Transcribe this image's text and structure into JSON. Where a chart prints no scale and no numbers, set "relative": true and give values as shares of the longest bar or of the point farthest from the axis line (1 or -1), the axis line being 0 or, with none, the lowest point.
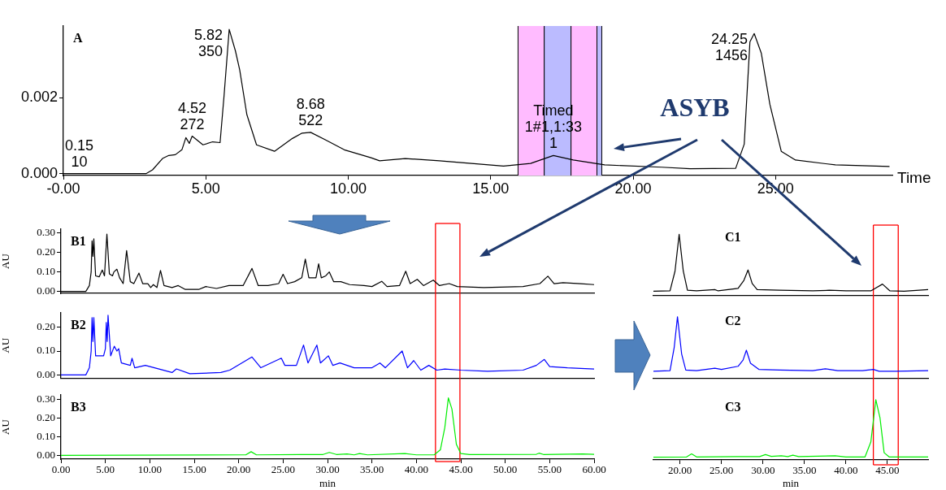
{
  "chart_data": [
    {
      "type": "line",
      "xlabel": "Time",
      "annotations": [
        "A",
        "ASYB",
        {
          "text": "0.15\n10",
          "x": 0.15,
          "y": 0
        },
        {
          "text": "4.52\n272",
          "x": 4.52,
          "y": 0.00099
        },
        {
          "text": "5.82\n350",
          "x": 5.82,
          "y": 0.00381
        },
        {
          "text": "8.68\n522",
          "x": 8.68,
          "y": 0.00109
        },
        {
          "text": "Timed\n1#1,1:33\n1",
          "x": 17.2,
          "y": 0.00048
        },
        {
          "text": "24.25\n1456",
          "x": 24.25,
          "y": 0.0037
        }
      ],
      "x": [
        0,
        0.06,
        0.15,
        1.5,
        2.9,
        3.13,
        3.48,
        3.7,
        3.93,
        4.16,
        4.3,
        4.42,
        4.52,
        4.9,
        5.24,
        5.5,
        5.64,
        5.82,
        6.04,
        6.19,
        6.44,
        6.78,
        7.41,
        8.04,
        8.38,
        8.68,
        9.18,
        9.86,
        10.8,
        11.1,
        12.0,
        13.2,
        15.45,
        16.4,
        17.2,
        17.9,
        19.0,
        21.0,
        22.0,
        23.6,
        23.9,
        24.1,
        24.25,
        24.5,
        24.8,
        25.2,
        25.7,
        27.1,
        29.0
      ],
      "series": [
        {
          "color": "#000000",
          "values": [
            0,
            0,
            0,
            0,
            0,
            0.0001,
            0.0004,
            0.00048,
            0.0005,
            0.00063,
            0.00095,
            0.0008,
            0.00099,
            0.00076,
            0.00084,
            0.00082,
            0.00206,
            0.00381,
            0.00324,
            0.00274,
            0.00156,
            0.00076,
            0.00059,
            0.00093,
            0.00107,
            0.00109,
            0.0009,
            0.00063,
            0.00042,
            0.00034,
            0.0004,
            0.00034,
            0.0002,
            0.00027,
            0.00048,
            0.00036,
            0.00023,
            0.00017,
            0.00013,
            0.00014,
            0.00078,
            0.00348,
            0.0037,
            0.00318,
            0.00183,
            0.00059,
            0.00036,
            0.00023,
            0.00019
          ]
        }
      ],
      "bands": [
        {
          "axis": "x",
          "from": 15.96,
          "to": 16.88,
          "color": "#ffbbff"
        },
        {
          "axis": "x",
          "from": 16.88,
          "to": 17.82,
          "color": "#bbbbff"
        },
        {
          "axis": "x",
          "from": 17.82,
          "to": 18.73,
          "color": "#ffbbff"
        },
        {
          "axis": "x",
          "from": 18.73,
          "to": 18.9,
          "color": "#bbbbff"
        }
      ],
      "xlim": [
        0,
        29.1
      ],
      "ylim": [
        -5e-05,
        0.0039
      ],
      "xticks": [
        {
          "value": 0,
          "label": "-0.00"
        },
        {
          "value": 5,
          "label": "5.00"
        },
        {
          "value": 10,
          "label": "10.00"
        },
        {
          "value": 15,
          "label": "15.00"
        },
        {
          "value": 20,
          "label": "20.00"
        },
        {
          "value": 25,
          "label": "25.00"
        }
      ],
      "yticks": [
        {
          "value": 0,
          "label": "0.000"
        },
        {
          "value": 0.002,
          "label": "0.002"
        }
      ]
    },
    {
      "type": "line",
      "ylabel": "AU",
      "annotations": [
        "B1"
      ],
      "tick_labels": "y",
      "x": [
        0,
        2.8,
        3.2,
        3.4,
        3.5,
        3.6,
        3.7,
        3.9,
        4.3,
        4.65,
        4.9,
        5.17,
        5.45,
        5.8,
        5.96,
        6.3,
        6.6,
        7.0,
        7.39,
        7.8,
        8.2,
        8.78,
        9.2,
        9.78,
        10.1,
        10.4,
        10.8,
        11.2,
        11.6,
        12.5,
        13.2,
        14,
        15.5,
        16.3,
        17.5,
        18.9,
        20.5,
        21.5,
        22.2,
        23.3,
        24.5,
        25.0,
        25.5,
        26.3,
        27.1,
        27.5,
        27.9,
        28.7,
        29.0,
        29.3,
        29.8,
        30.2,
        30.7,
        31.5,
        32.5,
        34.1,
        35,
        36.1,
        36.7,
        38.1,
        38.8,
        39.3,
        40.1,
        40.8,
        41.9,
        42.6,
        43.7,
        44.6,
        47.6,
        52,
        53.9,
        54.8,
        55.5,
        56.5,
        58.5,
        60
      ],
      "series": [
        {
          "color": "#000000",
          "values": [
            0,
            0,
            0.03,
            0.1,
            0.26,
            0.18,
            0.27,
            0.08,
            0.075,
            0.11,
            0.08,
            0.295,
            0.09,
            0.08,
            0.1,
            0.114,
            0.07,
            0.04,
            0.21,
            0.05,
            0.04,
            0.094,
            0.04,
            0.04,
            0.02,
            0.035,
            0.02,
            0.108,
            0.03,
            0.02,
            0.03,
            0.01,
            0.01,
            0.025,
            0.015,
            0.03,
            0.03,
            0.118,
            0.03,
            0.03,
            0.04,
            0.088,
            0.04,
            0.05,
            0.07,
            0.166,
            0.07,
            0.07,
            0.142,
            0.07,
            0.08,
            0.1,
            0.05,
            0.05,
            0.035,
            0.03,
            0.025,
            0.052,
            0.025,
            0.03,
            0.104,
            0.04,
            0.062,
            0.03,
            0.058,
            0.03,
            0.04,
            0.025,
            0.02,
            0.025,
            0.04,
            0.078,
            0.04,
            0.045,
            0.04,
            0.035
          ]
        }
      ],
      "ref_lines": [
        {
          "axis": "x",
          "value": 42.15,
          "color": "#ff0000"
        },
        {
          "axis": "x",
          "value": 44.9,
          "color": "#ff0000"
        }
      ],
      "xlim": [
        0,
        60
      ],
      "ylim": [
        -0.01,
        0.32
      ],
      "yticks": [
        {
          "value": 0,
          "label": "0.00"
        },
        {
          "value": 0.1,
          "label": "0.10"
        },
        {
          "value": 0.2,
          "label": "0.20"
        },
        {
          "value": 0.3,
          "label": "0.30"
        }
      ]
    },
    {
      "type": "line",
      "ylabel": "AU",
      "annotations": [
        "B2"
      ],
      "tick_labels": "y",
      "x": [
        0,
        2.8,
        3.2,
        3.4,
        3.5,
        3.6,
        3.7,
        3.9,
        4.8,
        5.0,
        5.1,
        5.2,
        5.3,
        5.6,
        6.0,
        6.3,
        6.5,
        6.8,
        7.8,
        8.0,
        8.3,
        9.5,
        12.5,
        13.0,
        14.5,
        18.0,
        19.0,
        21.5,
        22.5,
        24.8,
        25.2,
        26.5,
        27.3,
        27.8,
        28.8,
        29.2,
        30.1,
        30.6,
        31.4,
        33.0,
        35.0,
        35.9,
        36.5,
        38.4,
        39.0,
        39.7,
        40.5,
        41.4,
        42.3,
        43.2,
        45,
        48,
        52,
        53.5,
        54.4,
        55,
        57,
        60
      ],
      "series": [
        {
          "color": "#0000ff",
          "values": [
            0,
            0,
            0.03,
            0.1,
            0.24,
            0.14,
            0.24,
            0.08,
            0.08,
            0.11,
            0.22,
            0.14,
            0.25,
            0.08,
            0.12,
            0.1,
            0.11,
            0.05,
            0.04,
            0.07,
            0.03,
            0.04,
            0.01,
            0.025,
            0.005,
            0.01,
            0.02,
            0.075,
            0.03,
            0.07,
            0.04,
            0.04,
            0.125,
            0.05,
            0.125,
            0.05,
            0.08,
            0.04,
            0.05,
            0.03,
            0.03,
            0.05,
            0.03,
            0.1,
            0.03,
            0.06,
            0.02,
            0.04,
            0.02,
            0.025,
            0.02,
            0.015,
            0.02,
            0.04,
            0.065,
            0.035,
            0.03,
            0.025
          ]
        }
      ],
      "ref_lines": [
        {
          "axis": "x",
          "value": 42.15,
          "color": "#ff0000"
        },
        {
          "axis": "x",
          "value": 44.9,
          "color": "#ff0000"
        }
      ],
      "xlim": [
        0,
        60
      ],
      "ylim": [
        -0.013,
        0.26
      ],
      "yticks": [
        {
          "value": 0,
          "label": "0.00"
        },
        {
          "value": 0.1,
          "label": "0.10"
        },
        {
          "value": 0.2,
          "label": "0.20"
        }
      ]
    },
    {
      "type": "line",
      "ylabel": "AU",
      "xlabel": "min",
      "annotations": [
        "B3"
      ],
      "x": [
        0,
        20.8,
        21.4,
        22,
        27,
        29.5,
        30.2,
        31,
        32.2,
        33,
        33.6,
        34.5,
        38.7,
        40,
        42,
        42.7,
        43.2,
        43.6,
        44.0,
        44.5,
        45,
        46,
        53.5,
        53.8,
        54.3,
        58.7,
        60
      ],
      "series": [
        {
          "color": "#00ee00",
          "values": [
            0,
            0.003,
            0.02,
            0.003,
            0.005,
            0.005,
            0.016,
            0.005,
            0.008,
            0.003,
            0.01,
            0.003,
            0.01,
            0.003,
            0.003,
            0.03,
            0.15,
            0.31,
            0.25,
            0.06,
            0.01,
            0.005,
            0.006,
            0.012,
            0.005,
            0.008,
            0.006
          ]
        }
      ],
      "ref_lines": [
        {
          "axis": "x",
          "value": 42.15,
          "color": "#ff0000"
        },
        {
          "axis": "x",
          "value": 44.9,
          "color": "#ff0000"
        }
      ],
      "xlim": [
        0,
        60
      ],
      "ylim": [
        -0.02,
        0.326
      ],
      "xticks": [
        {
          "value": 0,
          "label": "0.00"
        },
        {
          "value": 5,
          "label": "5.00"
        },
        {
          "value": 10,
          "label": "10.00"
        },
        {
          "value": 15,
          "label": "15.00"
        },
        {
          "value": 20,
          "label": "20.00"
        },
        {
          "value": 25,
          "label": "25.00"
        },
        {
          "value": 30,
          "label": "30.00"
        },
        {
          "value": 35,
          "label": "35.00"
        },
        {
          "value": 40,
          "label": "40.00"
        },
        {
          "value": 45,
          "label": "45.00"
        },
        {
          "value": 50,
          "label": "50.00"
        },
        {
          "value": 55,
          "label": "55.00"
        },
        {
          "value": 60,
          "label": "60.00"
        }
      ],
      "yticks": [
        {
          "value": 0,
          "label": "0.00"
        },
        {
          "value": 0.1,
          "label": "0.10"
        },
        {
          "value": 0.2,
          "label": "0.20"
        },
        {
          "value": 0.3,
          "label": "0.30"
        }
      ]
    },
    {
      "type": "line",
      "relative": true,
      "annotations": [
        "C1"
      ],
      "tick_labels": false,
      "x": [
        16.8,
        18.8,
        19.4,
        19.9,
        20.4,
        20.9,
        22,
        24.2,
        24.6,
        27.0,
        27.7,
        28.2,
        28.7,
        29.3,
        32,
        36,
        38,
        40,
        43,
        43.5,
        44.4,
        45.3,
        47,
        49.9
      ],
      "series": [
        {
          "color": "#000000",
          "values": [
            0.075,
            0.08,
            0.4,
            1,
            0.4,
            0.09,
            0.08,
            0.1,
            0.08,
            0.12,
            0.25,
            0.42,
            0.2,
            0.1,
            0.09,
            0.08,
            0.09,
            0.08,
            0.08,
            0.12,
            0.19,
            0.08,
            0.075,
            0.1
          ]
        }
      ],
      "ref_lines": [
        {
          "axis": "x",
          "value": 43.3,
          "color": "#ff0000"
        },
        {
          "axis": "x",
          "value": 46.3,
          "color": "#ff0000"
        }
      ],
      "xlim": [
        16.8,
        49.9
      ]
    },
    {
      "type": "line",
      "relative": true,
      "annotations": [
        "C2"
      ],
      "tick_labels": false,
      "x": [
        16.8,
        18.8,
        19.3,
        19.7,
        20.2,
        20.7,
        22,
        24.2,
        25,
        27,
        27.6,
        28.0,
        28.5,
        29.5,
        32,
        36,
        37.5,
        39,
        42,
        43.3,
        44,
        46,
        49.9
      ],
      "series": [
        {
          "color": "#0000ff",
          "values": [
            0.12,
            0.13,
            0.5,
            1,
            0.4,
            0.14,
            0.13,
            0.17,
            0.15,
            0.2,
            0.3,
            0.46,
            0.25,
            0.15,
            0.14,
            0.13,
            0.16,
            0.13,
            0.13,
            0.15,
            0.12,
            0.12,
            0.13
          ]
        }
      ],
      "ref_lines": [
        {
          "axis": "x",
          "value": 43.3,
          "color": "#ff0000"
        },
        {
          "axis": "x",
          "value": 46.3,
          "color": "#ff0000"
        }
      ],
      "xlim": [
        16.8,
        49.9
      ]
    },
    {
      "type": "line",
      "relative": true,
      "xlabel": "min",
      "annotations": [
        "C3"
      ],
      "tick_labels": "x",
      "x": [
        16.8,
        20.8,
        21.4,
        22,
        26.8,
        29.6,
        30.3,
        31,
        32.2,
        33,
        33.6,
        34.3,
        38.7,
        40,
        42.3,
        43.0,
        43.6,
        44.1,
        44.6,
        45.2,
        49.9
      ],
      "series": [
        {
          "color": "#00ee00",
          "values": [
            0.045,
            0.05,
            0.1,
            0.05,
            0.055,
            0.055,
            0.09,
            0.06,
            0.07,
            0.055,
            0.08,
            0.055,
            0.07,
            0.05,
            0.05,
            0.3,
            1,
            0.7,
            0.12,
            0.05,
            0.05
          ]
        }
      ],
      "ref_lines": [
        {
          "axis": "x",
          "value": 43.3,
          "color": "#ff0000"
        },
        {
          "axis": "x",
          "value": 46.3,
          "color": "#ff0000"
        }
      ],
      "xlim": [
        16.8,
        49.9
      ],
      "xticks": [
        {
          "value": 20,
          "label": "20.00"
        },
        {
          "value": 25,
          "label": "25.00"
        },
        {
          "value": 30,
          "label": "30.00"
        },
        {
          "value": 35,
          "label": "35.00"
        },
        {
          "value": 40,
          "label": "40.00"
        },
        {
          "value": 45,
          "label": "45.00"
        }
      ]
    }
  ]
}
